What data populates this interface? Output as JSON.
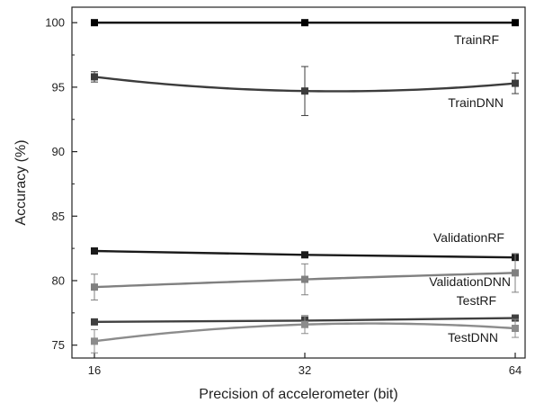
{
  "chart_data": {
    "type": "line",
    "title": "",
    "xlabel": "Precision of accelerometer (bit)",
    "ylabel": "Accuracy (%)",
    "x": [
      16,
      32,
      64
    ],
    "x_ticks": [
      "16",
      "32",
      "64"
    ],
    "x_scale": "log2",
    "ylim": [
      74,
      101.2
    ],
    "y_ticks": [
      75,
      80,
      85,
      90,
      95,
      100
    ],
    "grid": false,
    "legend": "labels next to each series",
    "series": [
      {
        "name": "TrainRF",
        "values": [
          100.0,
          100.0,
          100.0
        ],
        "errors": [
          0,
          0,
          0
        ],
        "color": "#000000",
        "marker": "square",
        "curve": "straight"
      },
      {
        "name": "TrainDNN",
        "values": [
          95.8,
          94.7,
          95.3
        ],
        "errors": [
          0.4,
          1.9,
          0.8
        ],
        "color": "#3c3c3c",
        "marker": "square",
        "curve": "smooth"
      },
      {
        "name": "ValidationRF",
        "values": [
          82.3,
          82.0,
          81.8
        ],
        "errors": [
          0.2,
          0.2,
          0.1
        ],
        "color": "#1a1a1a",
        "marker": "square",
        "curve": "straight"
      },
      {
        "name": "ValidationDNN",
        "values": [
          79.5,
          80.1,
          80.6
        ],
        "errors": [
          1.0,
          1.2,
          1.5
        ],
        "color": "#808080",
        "marker": "square",
        "curve": "smooth"
      },
      {
        "name": "TestRF",
        "values": [
          76.8,
          76.9,
          77.1
        ],
        "errors": [
          0.1,
          0.3,
          0.1
        ],
        "color": "#404040",
        "marker": "square",
        "curve": "straight"
      },
      {
        "name": "TestDNN",
        "values": [
          75.3,
          76.6,
          76.3
        ],
        "errors": [
          0.9,
          0.7,
          0.7
        ],
        "color": "#8c8c8c",
        "marker": "square",
        "curve": "smooth"
      }
    ]
  }
}
